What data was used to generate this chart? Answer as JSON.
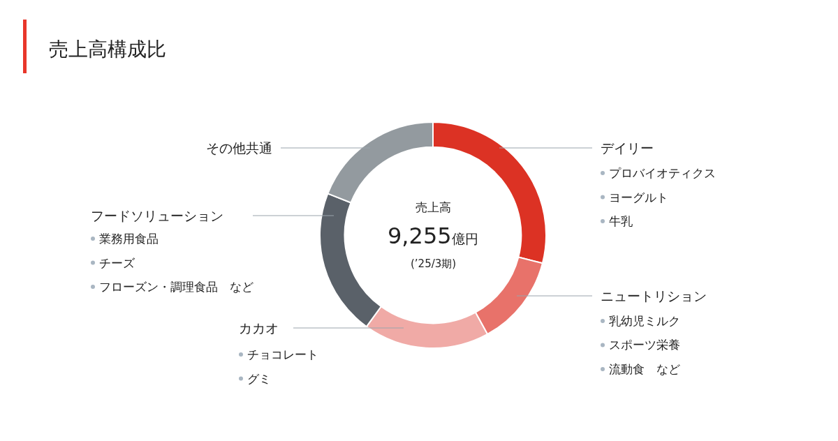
{
  "chart_data": {
    "type": "donut",
    "title": "売上高構成比",
    "categories": [
      "デイリー",
      "ニュートリション",
      "カカオ",
      "フードソリューション",
      "その他共通"
    ],
    "values": [
      29,
      13,
      18,
      21,
      19
    ],
    "colors": [
      "#dc3224",
      "#e8726a",
      "#f0aaa6",
      "#5a6169",
      "#939a9f"
    ],
    "annotations": [
      "売上高",
      "9,255億円",
      "(’25/3期)",
      "プロバイオティクス",
      "ヨーグルト",
      "牛乳",
      "乳幼児ミルク",
      "スポーツ栄養",
      "流動食　など",
      "チョコレート",
      "グミ",
      "業務用食品",
      "チーズ",
      "フローズン・調理食品　など"
    ],
    "legend": false
  }
}
